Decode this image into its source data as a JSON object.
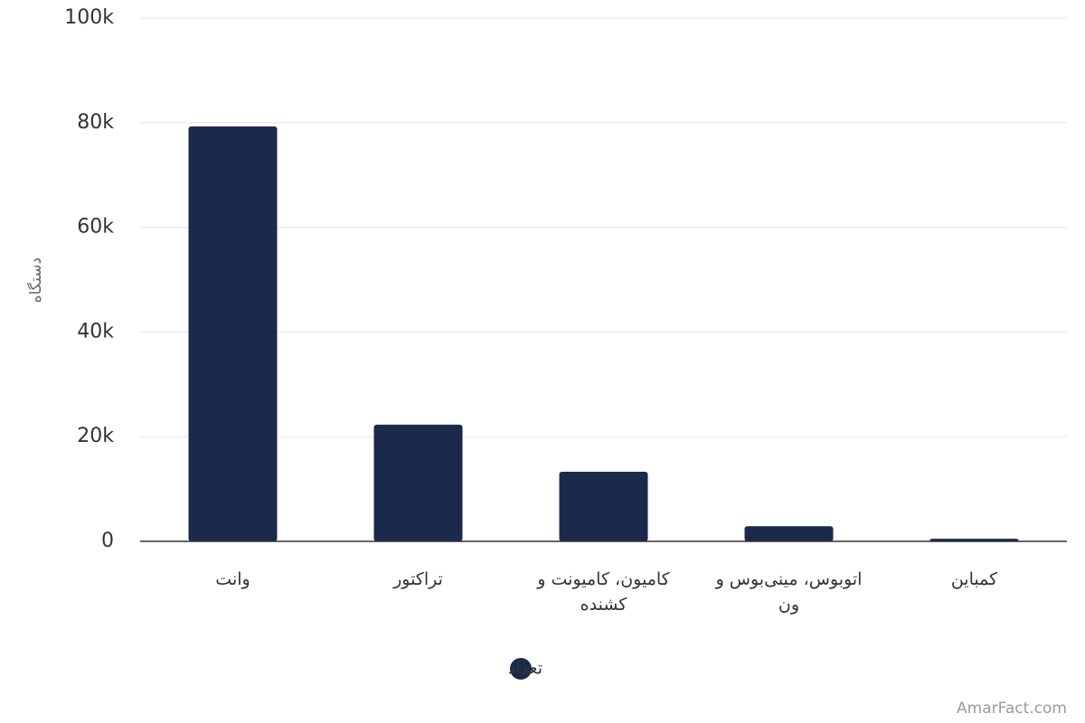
{
  "chart_data": {
    "type": "bar",
    "y_label": "دستگاه",
    "categories": [
      "وانت",
      "تراکتور",
      "کامیون، کامیونت و کشنده",
      "اتوبوس، مینی‌بوس و ون",
      "کمباین"
    ],
    "series": [
      {
        "name": "تعداد",
        "color": "#1b2a4b",
        "values": [
          79300,
          22300,
          13300,
          2900,
          500
        ]
      }
    ],
    "ylim": [
      0,
      100000
    ],
    "yticks": [
      0,
      {
        "value": 20000,
        "label": "20k"
      },
      {
        "value": 40000,
        "label": "40k"
      },
      {
        "value": 60000,
        "label": "60k"
      },
      {
        "value": 80000,
        "label": "80k"
      },
      {
        "value": 100000,
        "label": "100k"
      }
    ],
    "grid": true,
    "legend": "bottom",
    "credit": "AmarFact.com"
  }
}
